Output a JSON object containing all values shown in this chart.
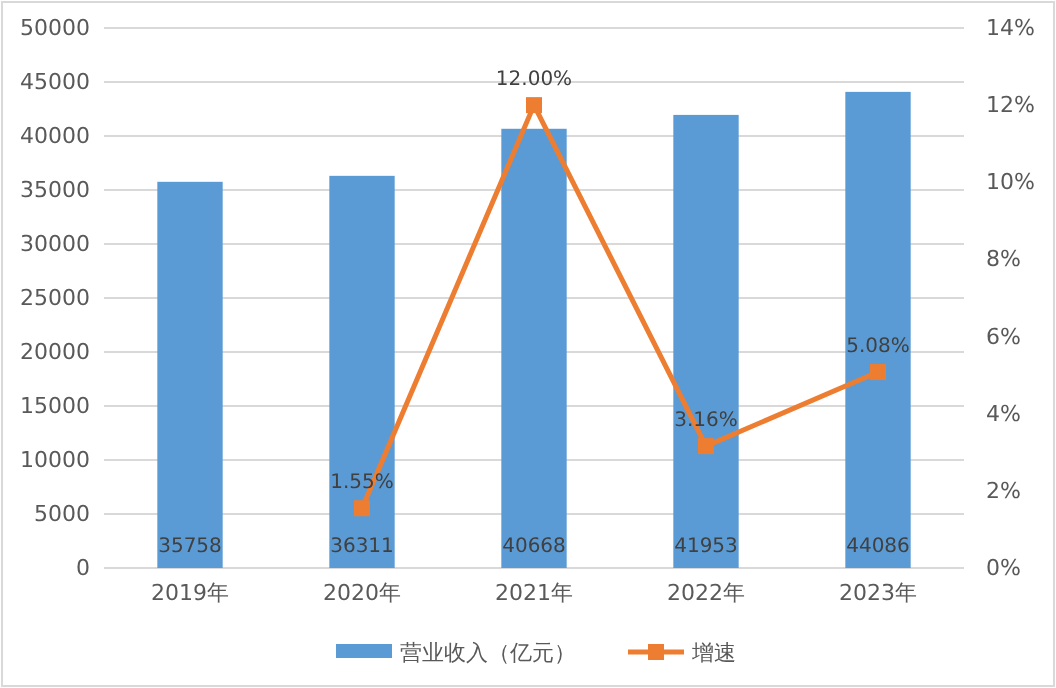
{
  "chart_data": {
    "type": "bar",
    "categories": [
      "2019年",
      "2020年",
      "2021年",
      "2022年",
      "2023年"
    ],
    "series": [
      {
        "name": "营业收入（亿元）",
        "color": "#5b9bd5",
        "values": [
          35758,
          36311,
          40668,
          41953,
          44086
        ],
        "value_labels": [
          "35758",
          "36311",
          "40668",
          "41953",
          "44086"
        ]
      },
      {
        "name": "增速",
        "type": "line",
        "axis": "y2",
        "color": "#ed7d31",
        "marker": "square",
        "values": [
          null,
          1.55,
          12.0,
          3.16,
          5.08
        ],
        "value_labels": [
          null,
          "1.55%",
          "12.00%",
          "3.16%",
          "5.08%"
        ]
      }
    ],
    "ylim": [
      0,
      50000
    ],
    "yticks": [
      0,
      5000,
      10000,
      15000,
      20000,
      25000,
      30000,
      35000,
      40000,
      45000,
      50000
    ],
    "y2lim": [
      0,
      14
    ],
    "y2ticks": [
      {
        "value": 0,
        "label": "0%"
      },
      {
        "value": 2,
        "label": "2%"
      },
      {
        "value": 4,
        "label": "4%"
      },
      {
        "value": 6,
        "label": "6%"
      },
      {
        "value": 8,
        "label": "8%"
      },
      {
        "value": 10,
        "label": "10%"
      },
      {
        "value": 12,
        "label": "12%"
      },
      {
        "value": 14,
        "label": "14%"
      }
    ],
    "grid": "y",
    "legend": "bottom"
  }
}
